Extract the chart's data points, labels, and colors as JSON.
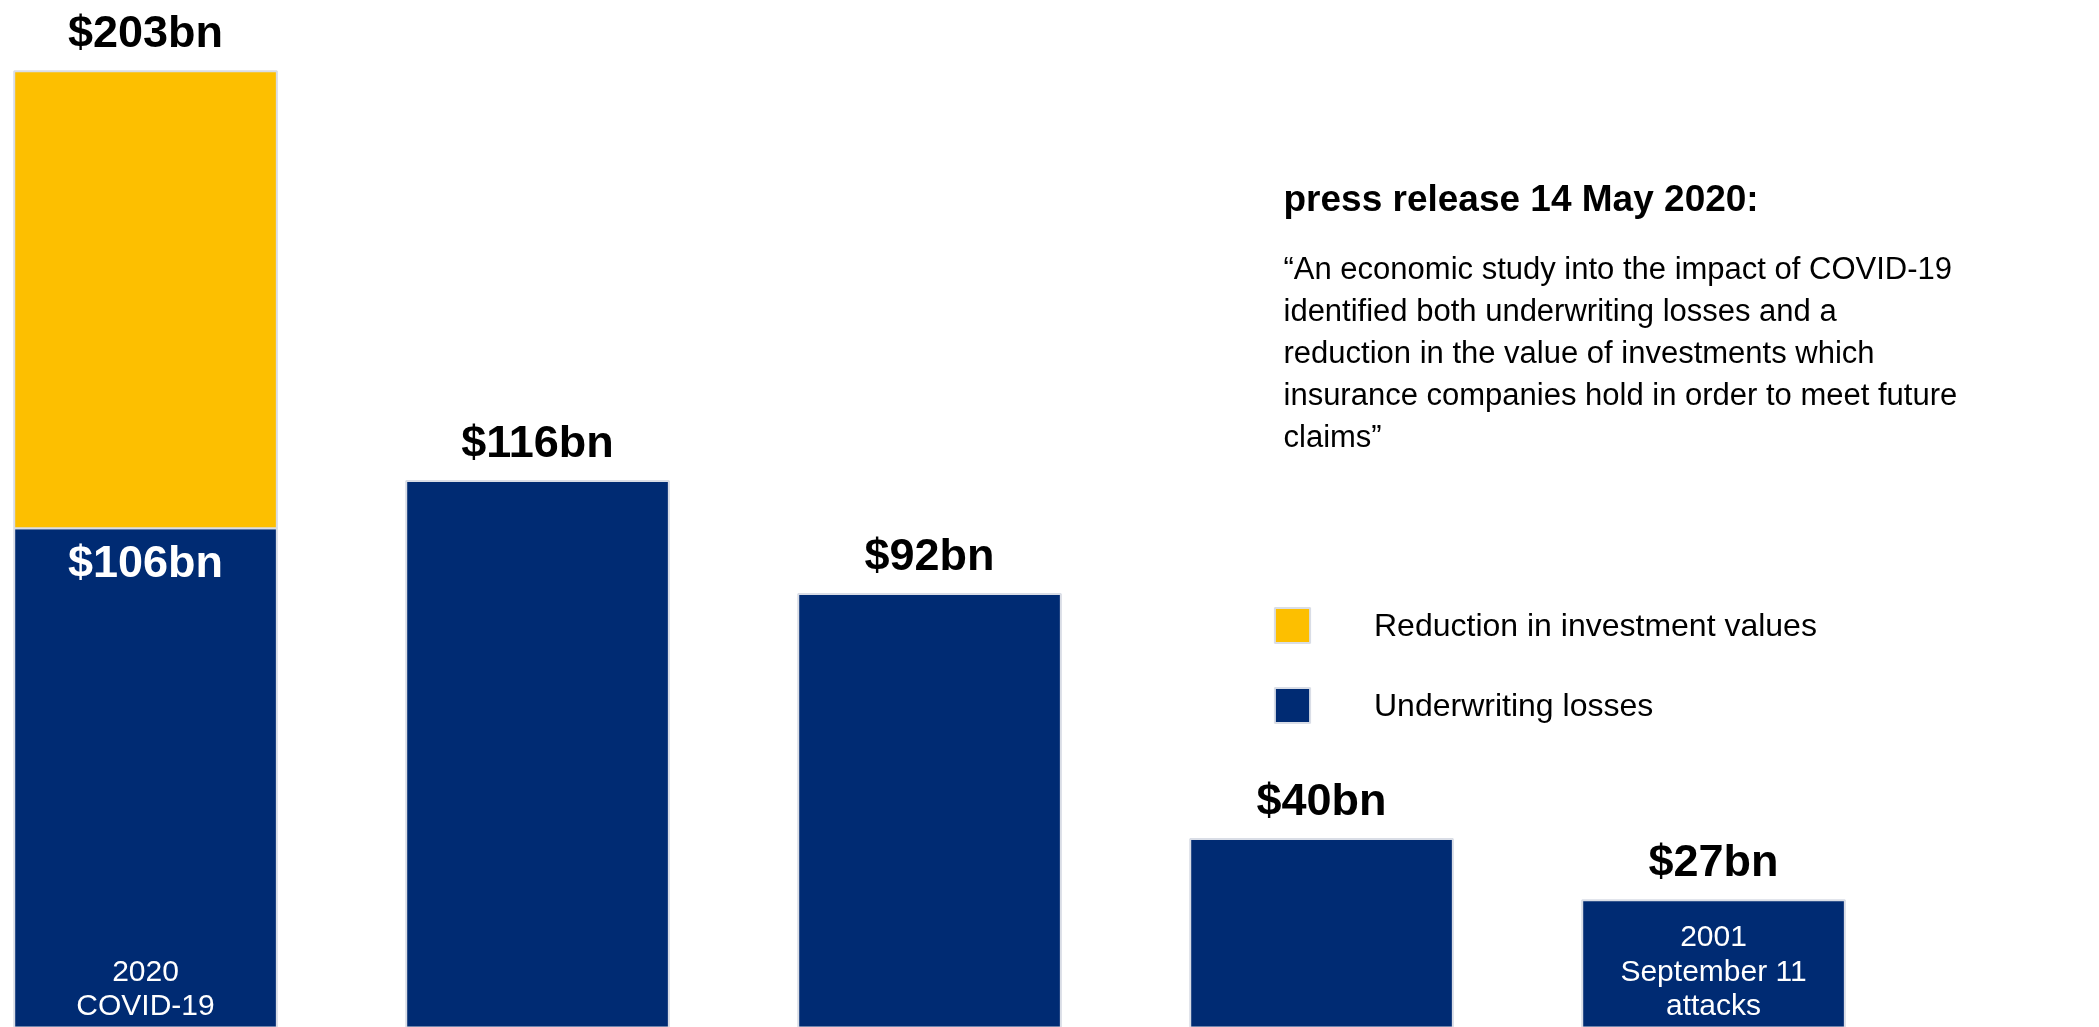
{
  "chart_data": {
    "type": "bar",
    "stacked": true,
    "title": "press release 14 May 2020:",
    "annotations": [
      "“An economic study into the impact of COVID-19 identified both underwriting losses and a reduction in the value of investments which insurance companies hold in order to meet future claims”"
    ],
    "categories": [
      "2020 COVID-19",
      null,
      null,
      null,
      "2001 September 11 attacks"
    ],
    "series": [
      {
        "name": "Underwriting losses",
        "color": "#002b73",
        "values": [
          106,
          116,
          92,
          40,
          27
        ],
        "value_labels": [
          "$106bn",
          null,
          null,
          null,
          null
        ]
      },
      {
        "name": "Reduction in investment values",
        "color": "#fdbf00",
        "values": [
          97,
          null,
          null,
          null,
          null
        ]
      }
    ],
    "totals": [
      "$203bn",
      "$116bn",
      "$92bn",
      "$40bn",
      "$27bn"
    ],
    "legend": "right",
    "grid": false
  }
}
